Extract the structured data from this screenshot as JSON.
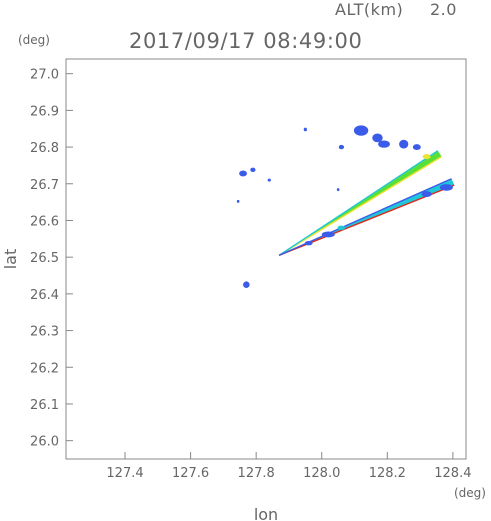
{
  "header": {
    "alt_label": "ALT(km)",
    "alt_value": "2.0",
    "timestamp": "2017/09/17 08:49:00"
  },
  "chart_data": {
    "type": "scatter",
    "title": "2017/09/17 08:49:00",
    "xlabel": "lon",
    "ylabel": "lat",
    "x_unit": "(deg)",
    "y_unit": "(deg)",
    "xlim": [
      127.22,
      128.44
    ],
    "ylim": [
      25.95,
      27.04
    ],
    "x_ticks": [
      "127.4",
      "127.6",
      "127.8",
      "128.0",
      "128.2",
      "128.4"
    ],
    "y_ticks": [
      "26.0",
      "26.1",
      "26.2",
      "26.3",
      "26.4",
      "26.5",
      "26.6",
      "26.7",
      "26.8",
      "26.9",
      "27.0"
    ],
    "grid": false,
    "colors": {
      "blue": "#3a5ce8",
      "cyan": "#1ec8d8",
      "green": "#58e038",
      "yellow": "#f0e030",
      "orange": "#f09020",
      "red": "#e02818"
    },
    "bands": [
      {
        "start": [
          127.87,
          26.505
        ],
        "end": [
          128.36,
          26.782
        ],
        "fill": "#58e038",
        "edges": [
          "#f0e030",
          "#1ec8d8"
        ]
      },
      {
        "start": [
          127.87,
          26.505
        ],
        "end": [
          128.4,
          26.705
        ],
        "fill": "#1ec8d8",
        "edges": [
          "#e02818",
          "#3a5ce8"
        ]
      }
    ],
    "echoes": [
      {
        "x": 128.12,
        "y": 26.845,
        "rx": 0.022,
        "ry": 0.014,
        "color": "#3a5ce8"
      },
      {
        "x": 128.17,
        "y": 26.825,
        "rx": 0.016,
        "ry": 0.012,
        "color": "#3a5ce8"
      },
      {
        "x": 128.19,
        "y": 26.808,
        "rx": 0.018,
        "ry": 0.01,
        "color": "#3a5ce8"
      },
      {
        "x": 128.25,
        "y": 26.808,
        "rx": 0.014,
        "ry": 0.012,
        "color": "#3a5ce8"
      },
      {
        "x": 128.29,
        "y": 26.8,
        "rx": 0.012,
        "ry": 0.008,
        "color": "#3a5ce8"
      },
      {
        "x": 128.06,
        "y": 26.8,
        "rx": 0.008,
        "ry": 0.006,
        "color": "#3a5ce8"
      },
      {
        "x": 127.95,
        "y": 26.848,
        "rx": 0.005,
        "ry": 0.005,
        "color": "#3a5ce8"
      },
      {
        "x": 127.76,
        "y": 26.728,
        "rx": 0.012,
        "ry": 0.008,
        "color": "#3a5ce8"
      },
      {
        "x": 127.79,
        "y": 26.738,
        "rx": 0.008,
        "ry": 0.006,
        "color": "#3a5ce8"
      },
      {
        "x": 127.84,
        "y": 26.71,
        "rx": 0.005,
        "ry": 0.004,
        "color": "#3a5ce8"
      },
      {
        "x": 127.745,
        "y": 26.652,
        "rx": 0.004,
        "ry": 0.004,
        "color": "#3a5ce8"
      },
      {
        "x": 128.05,
        "y": 26.684,
        "rx": 0.004,
        "ry": 0.004,
        "color": "#3a5ce8"
      },
      {
        "x": 127.77,
        "y": 26.425,
        "rx": 0.01,
        "ry": 0.009,
        "color": "#3a5ce8"
      },
      {
        "x": 128.38,
        "y": 26.69,
        "rx": 0.02,
        "ry": 0.009,
        "color": "#3a5ce8"
      },
      {
        "x": 128.32,
        "y": 26.672,
        "rx": 0.016,
        "ry": 0.008,
        "color": "#3a5ce8"
      },
      {
        "x": 128.02,
        "y": 26.562,
        "rx": 0.02,
        "ry": 0.008,
        "color": "#3a5ce8"
      },
      {
        "x": 127.96,
        "y": 26.538,
        "rx": 0.012,
        "ry": 0.006,
        "color": "#3a5ce8"
      },
      {
        "x": 128.06,
        "y": 26.58,
        "rx": 0.012,
        "ry": 0.006,
        "color": "#1ec8d8"
      },
      {
        "x": 128.32,
        "y": 26.774,
        "rx": 0.012,
        "ry": 0.007,
        "color": "#f0e030"
      }
    ]
  }
}
